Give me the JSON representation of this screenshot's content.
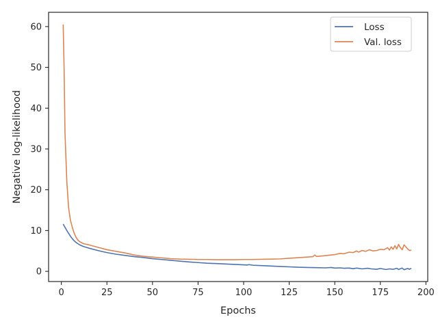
{
  "chart_data": {
    "type": "line",
    "xlabel": "Epochs",
    "ylabel": "Negative log-likelihood",
    "xlim": [
      -7,
      201
    ],
    "ylim": [
      -2.5,
      63.5
    ],
    "xticks": [
      0,
      25,
      50,
      75,
      100,
      125,
      150,
      175,
      200
    ],
    "yticks": [
      0,
      10,
      20,
      30,
      40,
      50,
      60
    ],
    "grid": false,
    "legend_position": "top-right",
    "series": [
      {
        "name": "Loss",
        "color": "#4c72b0",
        "points": [
          [
            1,
            11.6
          ],
          [
            2,
            10.8
          ],
          [
            3,
            10.0
          ],
          [
            4,
            9.3
          ],
          [
            5,
            8.6
          ],
          [
            6,
            8.0
          ],
          [
            7,
            7.5
          ],
          [
            8,
            7.1
          ],
          [
            9,
            6.8
          ],
          [
            10,
            6.5
          ],
          [
            12,
            6.1
          ],
          [
            15,
            5.7
          ],
          [
            20,
            5.1
          ],
          [
            25,
            4.6
          ],
          [
            30,
            4.2
          ],
          [
            35,
            3.9
          ],
          [
            40,
            3.6
          ],
          [
            45,
            3.4
          ],
          [
            50,
            3.1
          ],
          [
            55,
            2.9
          ],
          [
            60,
            2.7
          ],
          [
            65,
            2.5
          ],
          [
            70,
            2.3
          ],
          [
            75,
            2.15
          ],
          [
            80,
            2.0
          ],
          [
            85,
            1.9
          ],
          [
            90,
            1.8
          ],
          [
            95,
            1.7
          ],
          [
            100,
            1.6
          ],
          [
            102,
            1.55
          ],
          [
            103,
            1.65
          ],
          [
            105,
            1.5
          ],
          [
            110,
            1.4
          ],
          [
            115,
            1.3
          ],
          [
            120,
            1.2
          ],
          [
            125,
            1.1
          ],
          [
            130,
            1.0
          ],
          [
            135,
            0.95
          ],
          [
            140,
            0.9
          ],
          [
            145,
            0.85
          ],
          [
            148,
            0.95
          ],
          [
            150,
            0.8
          ],
          [
            153,
            0.85
          ],
          [
            155,
            0.75
          ],
          [
            158,
            0.8
          ],
          [
            160,
            0.65
          ],
          [
            162,
            0.8
          ],
          [
            165,
            0.6
          ],
          [
            168,
            0.75
          ],
          [
            170,
            0.6
          ],
          [
            173,
            0.5
          ],
          [
            175,
            0.7
          ],
          [
            178,
            0.45
          ],
          [
            180,
            0.6
          ],
          [
            182,
            0.5
          ],
          [
            184,
            0.75
          ],
          [
            185,
            0.45
          ],
          [
            187,
            0.8
          ],
          [
            188,
            0.4
          ],
          [
            190,
            0.7
          ],
          [
            191,
            0.5
          ],
          [
            192,
            0.75
          ]
        ]
      },
      {
        "name": "Val. loss",
        "color": "#dd8452",
        "points": [
          [
            1,
            60.5
          ],
          [
            1.5,
            50
          ],
          [
            2,
            34
          ],
          [
            2.5,
            28
          ],
          [
            3,
            22
          ],
          [
            4,
            15.5
          ],
          [
            5,
            12.5
          ],
          [
            6,
            10.8
          ],
          [
            7,
            9.4
          ],
          [
            8,
            8.4
          ],
          [
            9,
            7.7
          ],
          [
            10,
            7.3
          ],
          [
            12,
            6.8
          ],
          [
            15,
            6.5
          ],
          [
            20,
            5.9
          ],
          [
            25,
            5.3
          ],
          [
            30,
            4.9
          ],
          [
            35,
            4.5
          ],
          [
            40,
            4.0
          ],
          [
            45,
            3.7
          ],
          [
            50,
            3.5
          ],
          [
            55,
            3.3
          ],
          [
            60,
            3.1
          ],
          [
            65,
            3.0
          ],
          [
            70,
            2.95
          ],
          [
            75,
            2.9
          ],
          [
            80,
            2.9
          ],
          [
            85,
            2.85
          ],
          [
            90,
            2.85
          ],
          [
            95,
            2.85
          ],
          [
            100,
            2.9
          ],
          [
            105,
            2.9
          ],
          [
            110,
            2.95
          ],
          [
            115,
            3.0
          ],
          [
            120,
            3.05
          ],
          [
            125,
            3.2
          ],
          [
            130,
            3.35
          ],
          [
            135,
            3.5
          ],
          [
            138,
            3.6
          ],
          [
            139,
            4.0
          ],
          [
            140,
            3.65
          ],
          [
            145,
            3.85
          ],
          [
            150,
            4.1
          ],
          [
            153,
            4.4
          ],
          [
            155,
            4.3
          ],
          [
            158,
            4.7
          ],
          [
            160,
            4.6
          ],
          [
            162,
            5.0
          ],
          [
            163,
            4.7
          ],
          [
            165,
            5.1
          ],
          [
            167,
            4.9
          ],
          [
            169,
            5.3
          ],
          [
            171,
            5.0
          ],
          [
            173,
            5.1
          ],
          [
            175,
            5.4
          ],
          [
            177,
            5.3
          ],
          [
            179,
            5.8
          ],
          [
            180,
            5.2
          ],
          [
            181,
            6.0
          ],
          [
            182,
            5.4
          ],
          [
            183,
            6.3
          ],
          [
            184,
            5.5
          ],
          [
            185,
            6.6
          ],
          [
            186,
            5.8
          ],
          [
            187,
            5.3
          ],
          [
            188,
            6.5
          ],
          [
            189,
            6.0
          ],
          [
            190,
            5.5
          ],
          [
            191,
            5.1
          ],
          [
            192,
            5.2
          ]
        ]
      }
    ]
  }
}
